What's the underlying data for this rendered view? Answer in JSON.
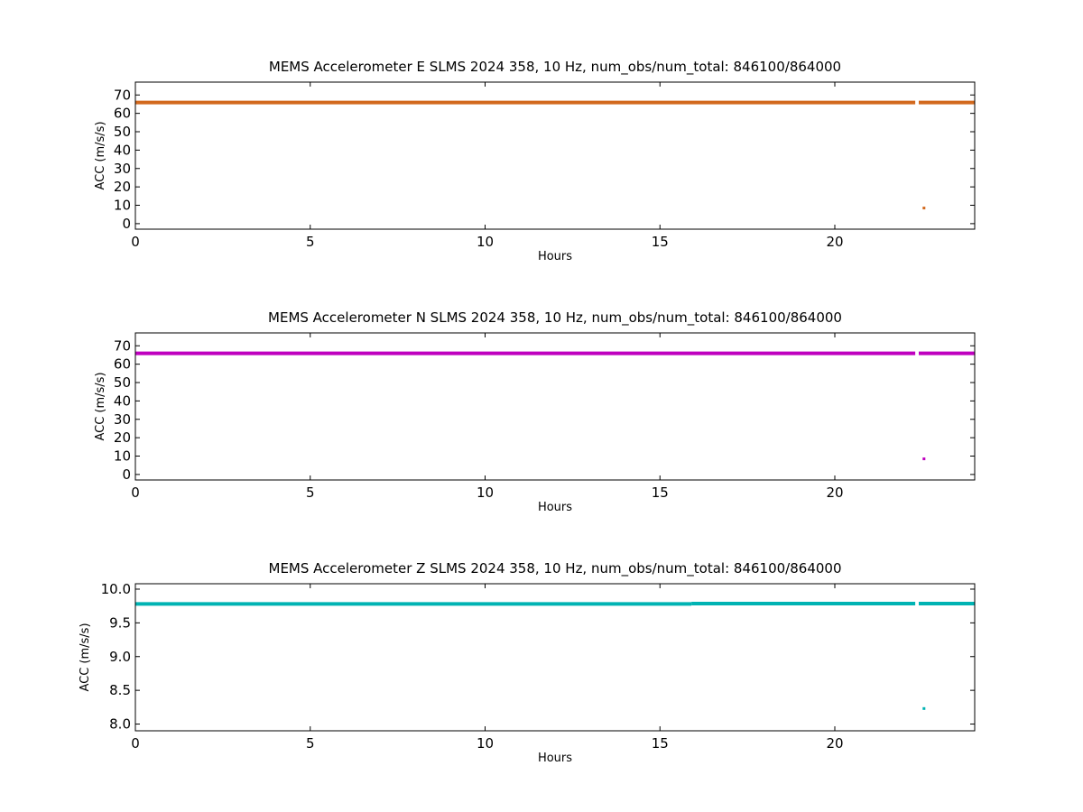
{
  "chart_data": [
    {
      "type": "scatter",
      "title": "MEMS Accelerometer E SLMS 2024 358, 10 Hz, num_obs/num_total: 846100/864000",
      "xlabel": "Hours",
      "ylabel": "ACC (m/s/s)",
      "xlim": [
        0,
        24
      ],
      "ylim": [
        -3,
        77
      ],
      "xticks": [
        "0",
        "5",
        "10",
        "15",
        "20"
      ],
      "yticks": [
        "0",
        "10",
        "20",
        "30",
        "40",
        "50",
        "60",
        "70"
      ],
      "grid": false,
      "color": "#d2691e",
      "series": [
        {
          "segments": [
            {
              "x_start": 0,
              "x_end": 22.3,
              "y": 65.9
            },
            {
              "x_start": 22.4,
              "x_end": 24,
              "y": 65.9
            }
          ],
          "outliers": [
            {
              "x": 22.55,
              "y": 8.5
            }
          ]
        }
      ]
    },
    {
      "type": "scatter",
      "title": "MEMS Accelerometer N SLMS 2024 358, 10 Hz, num_obs/num_total: 846100/864000",
      "xlabel": "Hours",
      "ylabel": "ACC (m/s/s)",
      "xlim": [
        0,
        24
      ],
      "ylim": [
        -3,
        77
      ],
      "xticks": [
        "0",
        "5",
        "10",
        "15",
        "20"
      ],
      "yticks": [
        "0",
        "10",
        "20",
        "30",
        "40",
        "50",
        "60",
        "70"
      ],
      "grid": false,
      "color": "#bf00bf",
      "series": [
        {
          "segments": [
            {
              "x_start": 0,
              "x_end": 22.3,
              "y": 65.9
            },
            {
              "x_start": 22.4,
              "x_end": 24,
              "y": 65.9
            }
          ],
          "outliers": [
            {
              "x": 22.55,
              "y": 8.5
            }
          ]
        }
      ]
    },
    {
      "type": "scatter",
      "title": "MEMS Accelerometer Z SLMS 2024 358, 10 Hz, num_obs/num_total: 846100/864000",
      "xlabel": "Hours",
      "ylabel": "ACC (m/s/s)",
      "xlim": [
        0,
        24
      ],
      "ylim": [
        7.9,
        10.08
      ],
      "xticks": [
        "0",
        "5",
        "10",
        "15",
        "20"
      ],
      "yticks": [
        "8.0",
        "8.5",
        "9.0",
        "9.5",
        "10.0"
      ],
      "grid": false,
      "color": "#00b3b3",
      "series": [
        {
          "segments": [
            {
              "x_start": 0,
              "x_end": 15.9,
              "y": 9.78
            },
            {
              "x_start": 15.9,
              "x_end": 22.3,
              "y": 9.785
            },
            {
              "x_start": 22.4,
              "x_end": 24,
              "y": 9.785
            }
          ],
          "outliers": [
            {
              "x": 22.55,
              "y": 8.23
            }
          ]
        }
      ]
    }
  ]
}
